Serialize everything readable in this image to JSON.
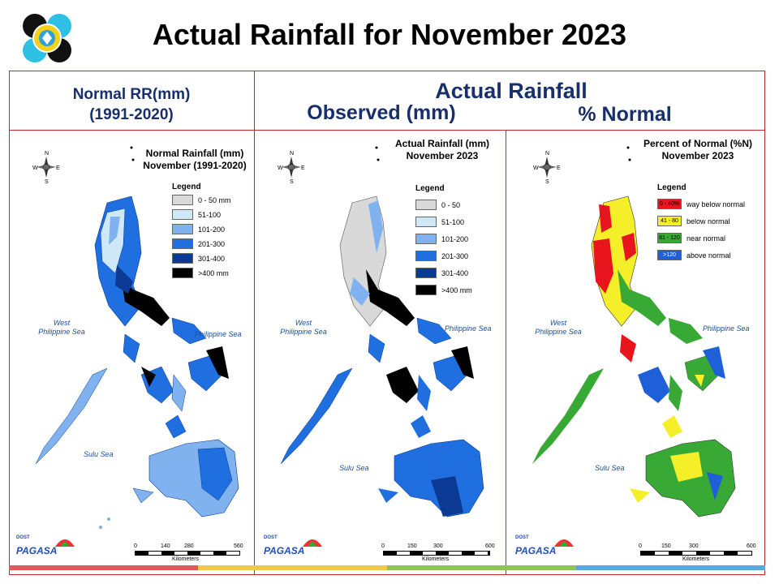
{
  "title": "Actual Rainfall for November 2023",
  "headers": {
    "normal": [
      "Normal RR(mm)",
      "(1991-2020)"
    ],
    "actual": "Actual Rainfall",
    "observed": "Observed (mm)",
    "percent": "% Normal"
  },
  "panels": [
    {
      "map_title": [
        "Normal Rainfall (mm)",
        "November (1991-2020)"
      ],
      "legend_title": "Legend",
      "legend": [
        {
          "label": "0 - 50 mm",
          "color": "#d9d9d9"
        },
        {
          "label": "51-100",
          "color": "#cfe8f8"
        },
        {
          "label": "101-200",
          "color": "#7fb2ef"
        },
        {
          "label": "201-300",
          "color": "#1f6fe0"
        },
        {
          "label": "301-400",
          "color": "#0b3a94"
        },
        {
          "label": ">400 mm",
          "color": "#000000"
        }
      ],
      "scale": [
        "0",
        "140",
        "280",
        "560"
      ],
      "scale_unit": "Kilometers"
    },
    {
      "map_title": [
        "Actual Rainfall (mm)",
        "November 2023"
      ],
      "legend_title": "Legend",
      "legend": [
        {
          "label": "0 - 50",
          "color": "#d9d9d9"
        },
        {
          "label": "51-100",
          "color": "#cfe8f8"
        },
        {
          "label": "101-200",
          "color": "#7fb2ef"
        },
        {
          "label": "201-300",
          "color": "#1f6fe0"
        },
        {
          "label": "301-400",
          "color": "#0b3a94"
        },
        {
          "label": ">400 mm",
          "color": "#000000"
        }
      ],
      "scale": [
        "0",
        "150",
        "300",
        "600"
      ],
      "scale_unit": "Kilometers"
    },
    {
      "map_title": [
        "Percent of Normal (%N)",
        "November 2023"
      ],
      "legend_title": "Legend",
      "legend": [
        {
          "label": "way below normal",
          "swatch_text": "0 - 40%",
          "color": "#e8141e"
        },
        {
          "label": "below normal",
          "swatch_text": "41 - 80",
          "color": "#f5ef2a"
        },
        {
          "label": "near normal",
          "swatch_text": "81 - 120",
          "color": "#39a935"
        },
        {
          "label": "above normal",
          "swatch_text": ">120",
          "color": "#1f5fd8"
        }
      ],
      "scale": [
        "0",
        "150",
        "300",
        "600"
      ],
      "scale_unit": "Kilometers"
    }
  ],
  "sea_labels": {
    "west": [
      "West",
      "Philippine Sea"
    ],
    "east": "Philippine Sea",
    "sulu": "Sulu Sea"
  },
  "compass": {
    "n": "N",
    "s": "S",
    "e": "E",
    "w": "W"
  },
  "logo_text": {
    "dost": "DOST",
    "name": "PAGASA"
  },
  "colors": {
    "frame": "#c0282d",
    "header_text": "#17306b",
    "footer_strip": [
      "#e05a5a",
      "#f0c94a",
      "#8fc45a",
      "#5aa8e0"
    ]
  }
}
